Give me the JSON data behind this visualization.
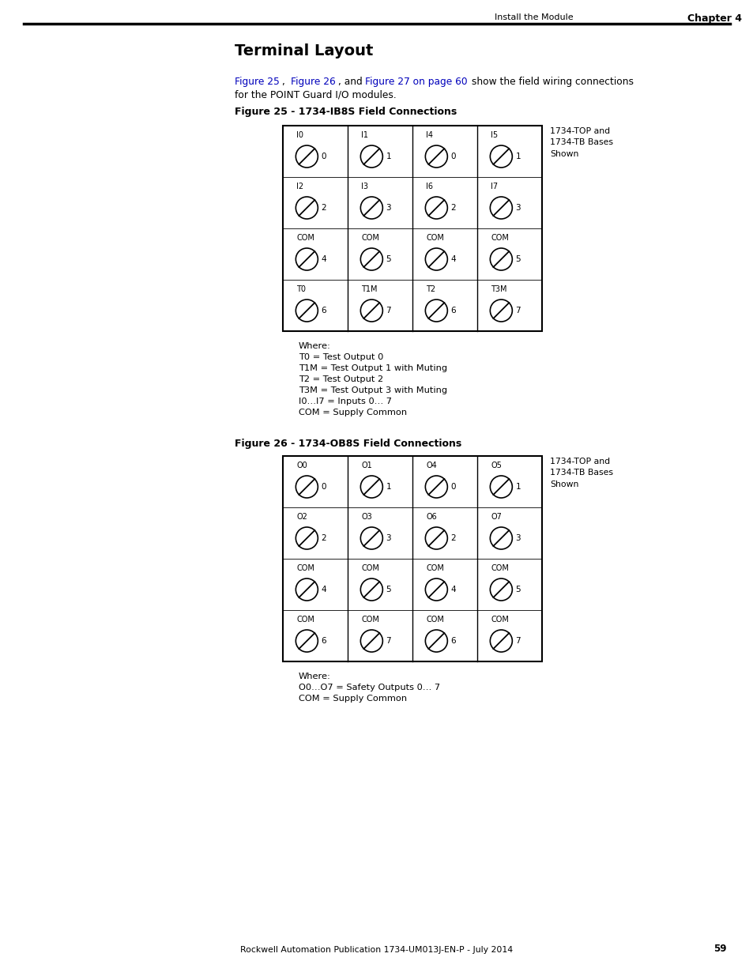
{
  "page_header_left": "Install the Module",
  "page_header_right": "Chapter 4",
  "title": "Terminal Layout",
  "fig25_title": "Figure 25 - 1734-IB8S Field Connections",
  "fig25_cols": [
    {
      "label": "I0",
      "num": "0",
      "label2": "I2",
      "num2": "2",
      "label3": "COM",
      "num3": "4",
      "label4": "T0",
      "num4": "6"
    },
    {
      "label": "I1",
      "num": "1",
      "label2": "I3",
      "num2": "3",
      "label3": "COM",
      "num3": "5",
      "label4": "T1M",
      "num4": "7"
    },
    {
      "label": "I4",
      "num": "0",
      "label2": "I6",
      "num2": "2",
      "label3": "COM",
      "num3": "4",
      "label4": "T2",
      "num4": "6"
    },
    {
      "label": "I5",
      "num": "1",
      "label2": "I7",
      "num2": "3",
      "label3": "COM",
      "num3": "5",
      "label4": "T3M",
      "num4": "7"
    }
  ],
  "fig25_note": "1734-TOP and\n1734-TB Bases\nShown",
  "fig25_where": [
    "Where:",
    "T0 = Test Output 0",
    "T1M = Test Output 1 with Muting",
    "T2 = Test Output 2",
    "T3M = Test Output 3 with Muting",
    "I0…I7 = Inputs 0… 7",
    "COM = Supply Common"
  ],
  "fig26_title": "Figure 26 - 1734-OB8S Field Connections",
  "fig26_cols": [
    {
      "label": "O0",
      "num": "0",
      "label2": "O2",
      "num2": "2",
      "label3": "COM",
      "num3": "4",
      "label4": "COM",
      "num4": "6"
    },
    {
      "label": "O1",
      "num": "1",
      "label2": "O3",
      "num2": "3",
      "label3": "COM",
      "num3": "5",
      "label4": "COM",
      "num4": "7"
    },
    {
      "label": "O4",
      "num": "0",
      "label2": "O6",
      "num2": "2",
      "label3": "COM",
      "num3": "4",
      "label4": "COM",
      "num4": "6"
    },
    {
      "label": "O5",
      "num": "1",
      "label2": "O7",
      "num2": "3",
      "label3": "COM",
      "num3": "5",
      "label4": "COM",
      "num4": "7"
    }
  ],
  "fig26_note": "1734-TOP and\n1734-TB Bases\nShown",
  "fig26_where": [
    "Where:",
    "O0…O7 = Safety Outputs 0… 7",
    "COM = Supply Common"
  ],
  "footer_text": "Rockwell Automation Publication 1734-UM013J-EN-P - July 2014",
  "footer_page": "59",
  "bg_color": "#ffffff",
  "link_color": "#0000bb"
}
